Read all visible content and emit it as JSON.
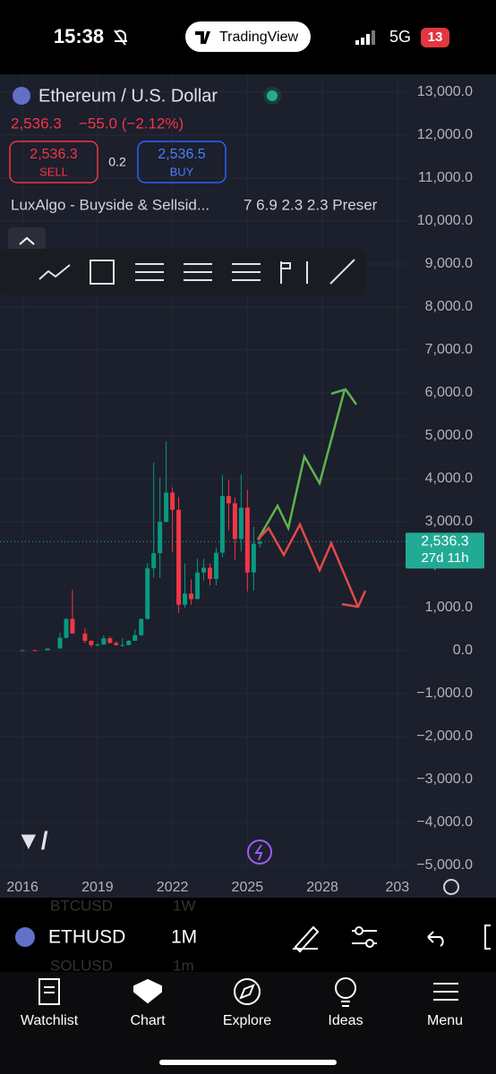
{
  "status": {
    "time": "15:38",
    "app": "TradingView",
    "network": "5G",
    "battery": "13"
  },
  "header": {
    "symbol_name": "Ethereum / U.S. Dollar",
    "price": "2,536.3",
    "change": "−55.0 (−2.12%)",
    "sell_price": "2,536.3",
    "sell": "SELL",
    "spread": "0.2",
    "buy_price": "2,536.5",
    "buy": "BUY",
    "indicator": "LuxAlgo - Buyside & Sellsid...",
    "indicator_values": "7 6.9 2.3 2.3 Preser"
  },
  "chart_data": {
    "type": "candlestick",
    "bull_color": "#089981",
    "bear_color": "#f23645",
    "x": [
      2016.0,
      2016.5,
      2017.0,
      2017.5,
      2017.75,
      2018.0,
      2018.5,
      2018.75,
      2019.0,
      2019.25,
      2019.5,
      2019.75,
      2020.0,
      2020.25,
      2020.5,
      2020.75,
      2021.0,
      2021.25,
      2021.5,
      2021.75,
      2022.0,
      2022.25,
      2022.5,
      2022.75,
      2023.0,
      2023.25,
      2023.5,
      2023.75,
      2024.0,
      2024.25,
      2024.5,
      2024.75,
      2025.0,
      2025.25,
      2025.5
    ],
    "open": [
      1,
      11,
      8,
      50,
      300,
      740,
      400,
      230,
      130,
      140,
      290,
      180,
      130,
      130,
      230,
      360,
      740,
      1920,
      2270,
      3000,
      3680,
      3280,
      1070,
      1330,
      1200,
      1820,
      1930,
      1670,
      2280,
      3600,
      3430,
      2600,
      3330,
      1820,
      2490
    ],
    "high": [
      14,
      21,
      50,
      420,
      760,
      1420,
      520,
      240,
      180,
      360,
      330,
      220,
      290,
      250,
      490,
      750,
      2040,
      4380,
      4030,
      4870,
      3800,
      3580,
      2030,
      1660,
      2140,
      2140,
      2030,
      2400,
      4090,
      3980,
      3560,
      4100,
      3740,
      2880,
      2600
    ],
    "low": [
      1,
      7,
      8,
      140,
      280,
      400,
      170,
      80,
      100,
      140,
      170,
      120,
      90,
      130,
      230,
      340,
      720,
      1700,
      1700,
      2980,
      2300,
      880,
      1000,
      1070,
      1200,
      1630,
      1520,
      1520,
      2170,
      2800,
      2120,
      2310,
      1380,
      1400,
      2400
    ],
    "close": [
      11,
      8,
      50,
      300,
      740,
      400,
      230,
      130,
      140,
      290,
      180,
      130,
      130,
      230,
      360,
      740,
      1920,
      2270,
      3000,
      3680,
      3280,
      1070,
      1330,
      1200,
      1820,
      1930,
      1670,
      2280,
      3600,
      3430,
      2600,
      3330,
      1820,
      2490,
      2536.3
    ],
    "xlim": [
      2015.1,
      2031.4
    ],
    "xticks": [
      2016,
      2019,
      2022,
      2025,
      2028,
      {
        "value": 2031,
        "label": "203"
      }
    ],
    "ylim": [
      -5062,
      13375
    ],
    "yticks": [
      {
        "value": -5000,
        "label": "−5,000.0"
      },
      {
        "value": -4000,
        "label": "−4,000.0"
      },
      {
        "value": -3000,
        "label": "−3,000.0"
      },
      {
        "value": -2000,
        "label": "−2,000.0"
      },
      {
        "value": -1000,
        "label": "−1,000.0"
      },
      {
        "value": 0,
        "label": "0.0"
      },
      {
        "value": 1000,
        "label": "1,000.0"
      },
      {
        "value": 2000,
        "label": "2,000.0"
      },
      {
        "value": 3000,
        "label": "3,000.0"
      },
      {
        "value": 4000,
        "label": "4,000.0"
      },
      {
        "value": 5000,
        "label": "5,000.0"
      },
      {
        "value": 6000,
        "label": "6,000.0"
      },
      {
        "value": 7000,
        "label": "7,000.0"
      },
      {
        "value": 8000,
        "label": "8,000.0"
      },
      {
        "value": 9000,
        "label": "9,000.0"
      },
      {
        "value": 10000,
        "label": "10,000.0"
      },
      {
        "value": 11000,
        "label": "11,000.0"
      },
      {
        "value": 12000,
        "label": "12,000.0"
      },
      {
        "value": 13000,
        "label": "13,000.0"
      }
    ],
    "last_price": {
      "value": 2536.3,
      "label": "2,536.3"
    },
    "countdown": "27d 11h"
  },
  "symbols": [
    {
      "ticker": "BTCUSD",
      "interval": "1W"
    },
    {
      "ticker": "ETHUSD",
      "interval": "1M"
    },
    {
      "ticker": "SOLUSD",
      "interval": "1m"
    }
  ],
  "nav": [
    "Watchlist",
    "Chart",
    "Explore",
    "Ideas",
    "Menu"
  ]
}
